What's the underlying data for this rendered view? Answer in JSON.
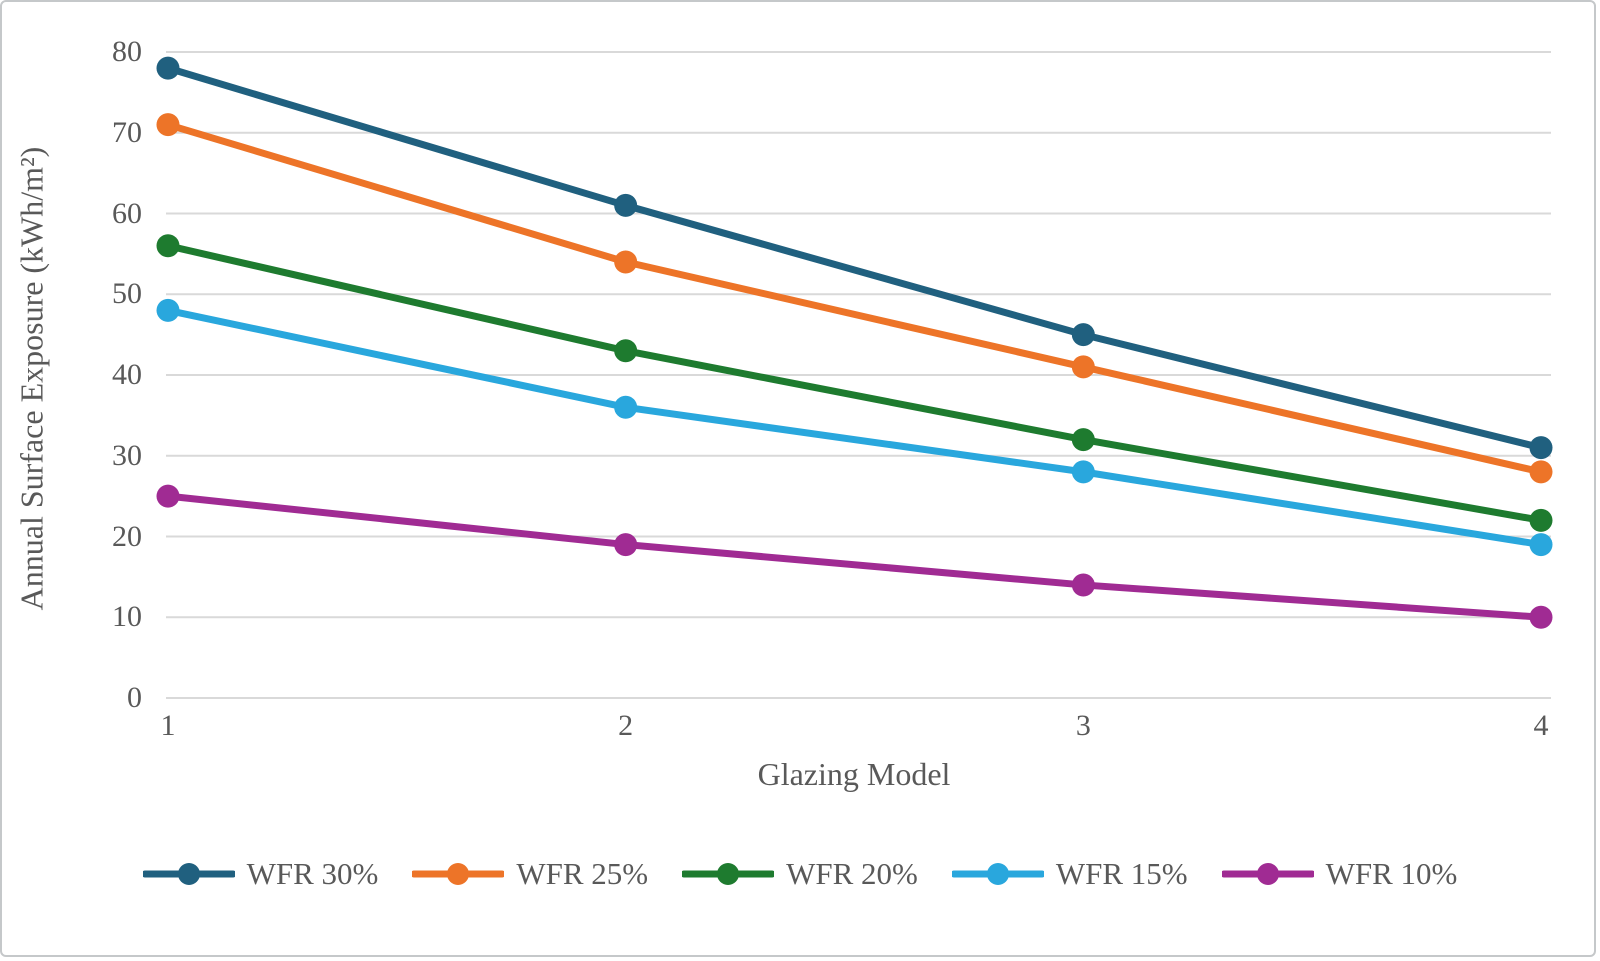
{
  "figure": {
    "background": "#FFFFFF",
    "border_color": "#C5C8CA",
    "text_color": "#595959",
    "gridline_color": "#D9D9D9"
  },
  "chart_data": {
    "type": "line",
    "title": "",
    "xlabel": "Glazing Model",
    "ylabel": "Annual Surface Exposure (kWh/m²)",
    "categories": [
      "1",
      "2",
      "3",
      "4"
    ],
    "yticks": [
      0,
      10,
      20,
      30,
      40,
      50,
      60,
      70,
      80
    ],
    "ylim": [
      0,
      80
    ],
    "grid": "horizontal",
    "legend_position": "bottom",
    "marker": "circle",
    "series": [
      {
        "name": "WFR 30%",
        "color": "#20607F",
        "values": [
          78,
          61,
          45,
          31
        ]
      },
      {
        "name": "WFR 25%",
        "color": "#ED7428",
        "values": [
          71,
          54,
          41,
          28
        ]
      },
      {
        "name": "WFR 20%",
        "color": "#1E7B2F",
        "values": [
          56,
          43,
          32,
          22
        ]
      },
      {
        "name": "WFR 15%",
        "color": "#29A7DD",
        "values": [
          48,
          36,
          28,
          19
        ]
      },
      {
        "name": "WFR 10%",
        "color": "#A02B93",
        "values": [
          25,
          19,
          14,
          10
        ]
      }
    ]
  }
}
